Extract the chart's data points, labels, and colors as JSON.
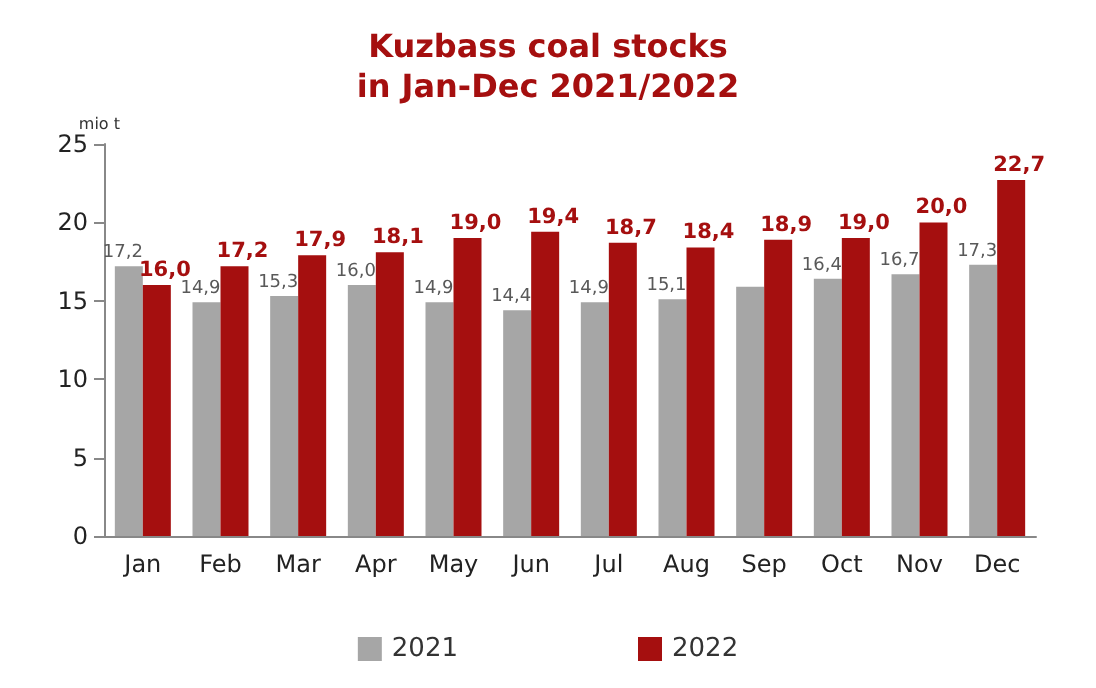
{
  "chart_data": {
    "type": "bar",
    "title": "Kuzbass coal stocks\nin Jan-Dec 2021/2022",
    "ylabel": "mio t",
    "categories": [
      "Jan",
      "Feb",
      "Mar",
      "Apr",
      "May",
      "Jun",
      "Jul",
      "Aug",
      "Sep",
      "Oct",
      "Nov",
      "Dec"
    ],
    "series": [
      {
        "name": "2021",
        "color": "#a6a6a6",
        "values": [
          17.2,
          14.9,
          15.3,
          16.0,
          14.9,
          14.4,
          14.9,
          15.1,
          15.9,
          16.4,
          16.7,
          17.3
        ],
        "value_labels": [
          "17,2",
          "14,9",
          "15,3",
          "16,0",
          "14,9",
          "14,4",
          "14,9",
          "15,1",
          null,
          "16,4",
          "16,7",
          "17,3"
        ]
      },
      {
        "name": "2022",
        "color": "#a50f0f",
        "values": [
          16.0,
          17.2,
          17.9,
          18.1,
          19.0,
          19.4,
          18.7,
          18.4,
          18.9,
          19.0,
          20.0,
          22.7
        ],
        "value_labels": [
          "16,0",
          "17,2",
          "17,9",
          "18,1",
          "19,0",
          "19,4",
          "18,7",
          "18,4",
          "18,9",
          "19,0",
          "20,0",
          "22,7"
        ]
      }
    ],
    "ylim": [
      0,
      25
    ],
    "yticks": [
      0,
      5,
      10,
      15,
      20,
      25
    ],
    "grid": false,
    "legend": "bottom"
  }
}
